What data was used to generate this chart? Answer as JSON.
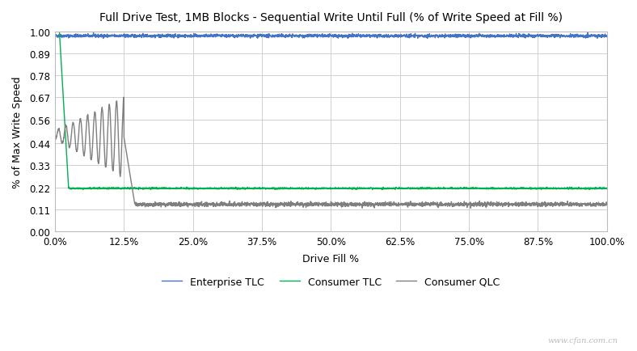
{
  "title": "Full Drive Test, 1MB Blocks - Sequential Write Until Full (% of Write Speed at Fill %)",
  "xlabel": "Drive Fill %",
  "ylabel": "% of Max Write Speed",
  "xlim": [
    0.0,
    1.0
  ],
  "ylim": [
    0.0,
    1.0
  ],
  "yticks": [
    0.0,
    0.11,
    0.22,
    0.33,
    0.44,
    0.56,
    0.67,
    0.78,
    0.89,
    1.0
  ],
  "xticks": [
    0.0,
    0.125,
    0.25,
    0.375,
    0.5,
    0.625,
    0.75,
    0.875,
    1.0
  ],
  "xtick_labels": [
    "0.0%",
    "12.5%",
    "25.0%",
    "37.5%",
    "50.0%",
    "62.5%",
    "75.0%",
    "87.5%",
    "100.0%"
  ],
  "enterprise_tlc_color": "#4472C4",
  "consumer_tlc_color": "#00B050",
  "consumer_qlc_color": "#7F7F7F",
  "background_color": "#FFFFFF",
  "grid_color": "#D0D0D0",
  "legend_labels": [
    "Enterprise TLC",
    "Consumer TLC",
    "Consumer QLC"
  ],
  "watermark": "www.cfan.com.cn"
}
